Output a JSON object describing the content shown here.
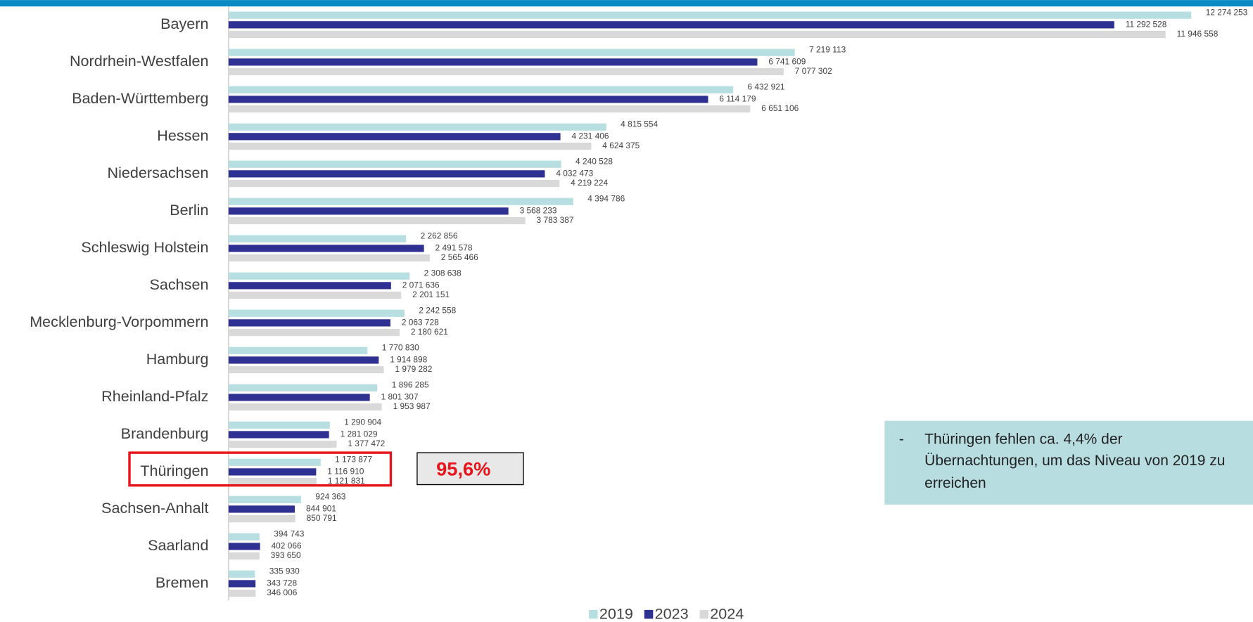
{
  "chart_data": {
    "type": "barh",
    "categories": [
      "Bayern",
      "Nordrhein-Westfalen",
      "Baden-Württemberg",
      "Hessen",
      "Niedersachsen",
      "Berlin",
      "Schleswig Holstein",
      "Sachsen",
      "Mecklenburg-Vorpommern",
      "Hamburg",
      "Rheinland-Pfalz",
      "Brandenburg",
      "Thüringen",
      "Sachsen-Anhalt",
      "Saarland",
      "Bremen"
    ],
    "series": [
      {
        "name": "2019",
        "color": "#b7dfe2",
        "values": [
          12274253,
          7219113,
          6432921,
          4815554,
          4240528,
          4394786,
          2262856,
          2308638,
          2242558,
          1770830,
          1896285,
          1290904,
          1173877,
          924363,
          394743,
          335930
        ],
        "value_labels": [
          "12 274 253",
          "7 219 113",
          "6 432 921",
          "4 815 554",
          "4 240 528",
          "4 394 786",
          "2 262 856",
          "2 308 638",
          "2 242 558",
          "1 770 830",
          "1 896 285",
          "1 290 904",
          "1 173 877",
          "924 363",
          "394 743",
          "335 930"
        ]
      },
      {
        "name": "2023",
        "color": "#2e3192",
        "values": [
          11292528,
          6741609,
          6114179,
          4231406,
          4032473,
          3568233,
          2491578,
          2071636,
          2063728,
          1914898,
          1801307,
          1281029,
          1116910,
          844901,
          402066,
          343728
        ],
        "value_labels": [
          "11 292 528",
          "6 741 609",
          "6 114 179",
          "4 231 406",
          "4 032 473",
          "3 568 233",
          "2 491 578",
          "2 071 636",
          "2 063 728",
          "1 914 898",
          "1 801 307",
          "1 281 029",
          "1 116 910",
          "844 901",
          "402 066",
          "343 728"
        ]
      },
      {
        "name": "2024",
        "color": "#d9d9d9",
        "values": [
          11946558,
          7077302,
          6651106,
          4624375,
          4219224,
          3783387,
          2565466,
          2201151,
          2180621,
          1979282,
          1953987,
          1377472,
          1121831,
          850791,
          393650,
          346006
        ],
        "value_labels": [
          "11 946 558",
          "7 077 302",
          "6 651 106",
          "4 624 375",
          "4 219 224",
          "3 783 387",
          "2 565 466",
          "2 201 151",
          "2 180 621",
          "1 979 282",
          "1 953 987",
          "1 377 472",
          "1 121 831",
          "850 791",
          "393 650",
          "346 006"
        ]
      }
    ],
    "xlim": [
      0,
      13000000
    ],
    "legend": "bottom",
    "highlight_label": "95,6%",
    "annotation": {
      "bullet": "-",
      "lines": [
        "Thüringen fehlen ca. 4,4% der",
        "Übernachtungen, um das Niveau von 2019 zu",
        "erreichen"
      ]
    }
  }
}
